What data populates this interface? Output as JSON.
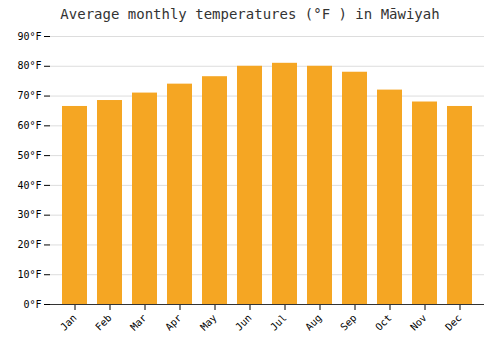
{
  "chart_data": {
    "type": "bar",
    "title": "Average monthly temperatures (°F ) in Māwiyah",
    "categories": [
      "Jan",
      "Feb",
      "Mar",
      "Apr",
      "May",
      "Jun",
      "Jul",
      "Aug",
      "Sep",
      "Oct",
      "Nov",
      "Dec"
    ],
    "values": [
      66.5,
      68.5,
      71.0,
      74.0,
      76.5,
      80.0,
      81.0,
      80.0,
      78.0,
      72.0,
      68.0,
      66.5
    ],
    "color": "#F5A623",
    "ylim": [
      0,
      90
    ],
    "yticks": [
      {
        "value": 0,
        "label": "0°F"
      },
      {
        "value": 10,
        "label": "10°F"
      },
      {
        "value": 20,
        "label": "20°F"
      },
      {
        "value": 30,
        "label": "30°F"
      },
      {
        "value": 40,
        "label": "40°F"
      },
      {
        "value": 50,
        "label": "50°F"
      },
      {
        "value": 60,
        "label": "60°F"
      },
      {
        "value": 70,
        "label": "70°F"
      },
      {
        "value": 80,
        "label": "80°F"
      },
      {
        "value": 90,
        "label": "90°F"
      }
    ],
    "grid": true
  }
}
